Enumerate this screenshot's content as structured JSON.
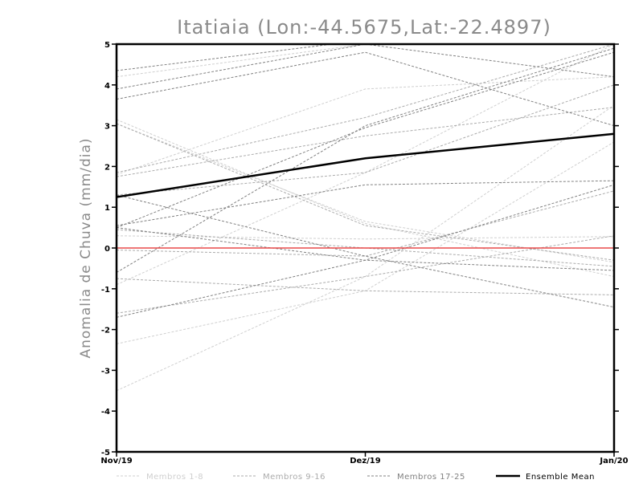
{
  "chart_data": {
    "type": "line",
    "title": "Itatiaia (Lon:-44.5675,Lat:-22.4897)",
    "ylabel": "Anomalia de Chuva (mm/dia)",
    "xlabel": "",
    "categories": [
      "Nov/19",
      "Dez/19",
      "Jan/20"
    ],
    "ylim": [
      -5,
      5
    ],
    "yticks": [
      "-5",
      "-4",
      "-3",
      "-2",
      "-1",
      "0",
      "1",
      "2",
      "3",
      "4",
      "5"
    ],
    "zero_line_color": "#e84a4a",
    "groups": [
      {
        "name": "Membros 1-8",
        "color": "#cfcfcf"
      },
      {
        "name": "Membros 9-16",
        "color": "#ababab"
      },
      {
        "name": "Membros 17-25",
        "color": "#808080"
      },
      {
        "name": "Ensemble Mean",
        "color": "#000000"
      }
    ],
    "series": [
      {
        "group": 0,
        "values": [
          3.15,
          0.6,
          -0.7
        ]
      },
      {
        "group": 0,
        "values": [
          3.05,
          0.65,
          -0.35
        ]
      },
      {
        "group": 0,
        "values": [
          1.8,
          3.9,
          4.2
        ]
      },
      {
        "group": 0,
        "values": [
          4.2,
          5.0,
          5.0
        ]
      },
      {
        "group": 0,
        "values": [
          -0.9,
          1.85,
          5.0
        ]
      },
      {
        "group": 0,
        "values": [
          0.3,
          0.22,
          0.28
        ]
      },
      {
        "group": 0,
        "values": [
          -2.35,
          -1.05,
          2.6
        ]
      },
      {
        "group": 0,
        "values": [
          -3.5,
          -0.7,
          3.5
        ]
      },
      {
        "group": 1,
        "values": [
          1.75,
          2.75,
          3.45
        ]
      },
      {
        "group": 1,
        "values": [
          1.85,
          3.2,
          5.0
        ]
      },
      {
        "group": 1,
        "values": [
          1.3,
          1.85,
          4.0
        ]
      },
      {
        "group": 1,
        "values": [
          0.45,
          0.0,
          -0.45
        ]
      },
      {
        "group": 1,
        "values": [
          -0.75,
          -1.05,
          -1.15
        ]
      },
      {
        "group": 1,
        "values": [
          -1.6,
          -0.7,
          0.3
        ]
      },
      {
        "group": 1,
        "values": [
          3.05,
          0.55,
          -0.3
        ]
      },
      {
        "group": 1,
        "values": [
          -0.05,
          -0.2,
          1.4
        ]
      },
      {
        "group": 2,
        "values": [
          4.35,
          5.1,
          5.0
        ]
      },
      {
        "group": 2,
        "values": [
          3.9,
          5.0,
          4.2
        ]
      },
      {
        "group": 2,
        "values": [
          3.65,
          4.8,
          3.0
        ]
      },
      {
        "group": 2,
        "values": [
          0.55,
          1.55,
          1.65
        ]
      },
      {
        "group": 2,
        "values": [
          0.5,
          2.95,
          4.8
        ]
      },
      {
        "group": 2,
        "values": [
          1.3,
          -0.2,
          -1.45
        ]
      },
      {
        "group": 2,
        "values": [
          -1.7,
          -0.3,
          1.55
        ]
      },
      {
        "group": 2,
        "values": [
          0.5,
          -0.3,
          -0.55
        ]
      },
      {
        "group": 2,
        "values": [
          -0.6,
          3.0,
          4.9
        ]
      },
      {
        "group": 3,
        "name": "Ensemble Mean",
        "values": [
          1.25,
          2.2,
          2.8
        ]
      }
    ],
    "zero_line": 0,
    "grid": false,
    "legend_placement": "bottom"
  }
}
